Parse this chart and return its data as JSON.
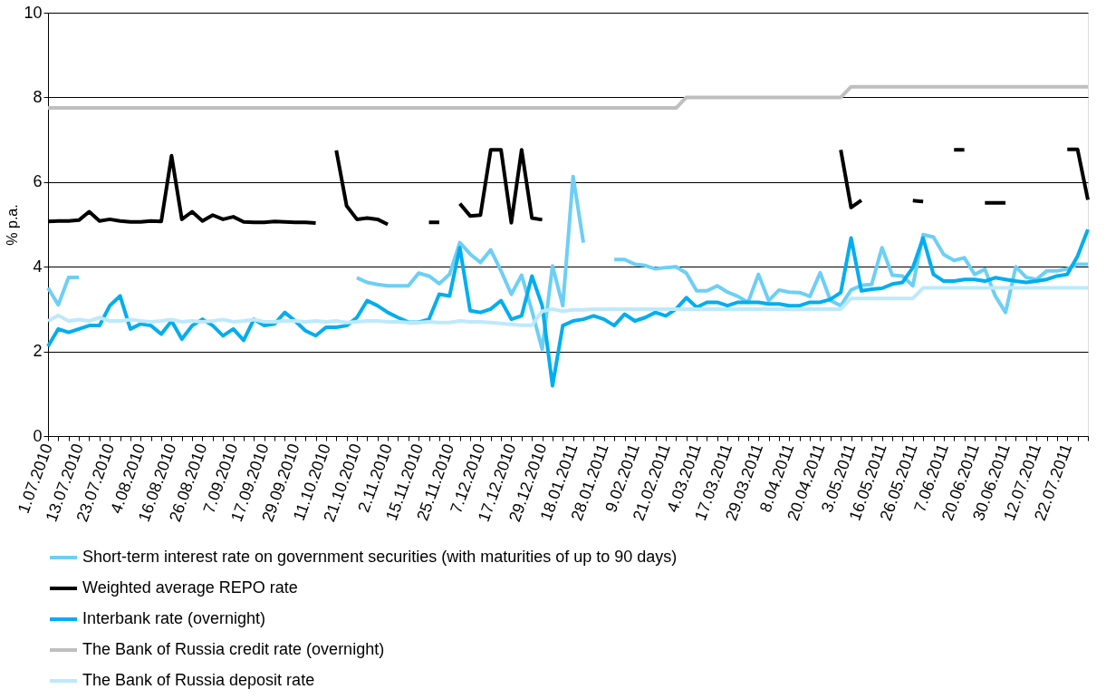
{
  "chart_data": {
    "type": "line",
    "ylabel": "% p.a.",
    "ylim": [
      0,
      10
    ],
    "yticks": [
      0,
      2,
      4,
      6,
      8,
      10
    ],
    "grid": "y",
    "legend": "bottom",
    "line_style": "solid",
    "marker": "none",
    "categories": [
      "1.07.2010",
      null,
      null,
      "13.07.2010",
      null,
      null,
      "23.07.2010",
      null,
      null,
      "4.08.2010",
      null,
      null,
      "16.08.2010",
      null,
      null,
      "26.08.2010",
      null,
      null,
      "7.09.2010",
      null,
      null,
      "17.09.2010",
      null,
      null,
      "29.09.2010",
      null,
      null,
      "11.10.2010",
      null,
      null,
      "21.10.2010",
      null,
      null,
      "2.11.2010",
      null,
      null,
      "15.11.2010",
      null,
      null,
      "25.11.2010",
      null,
      null,
      "7.12.2010",
      null,
      null,
      "17.12.2010",
      null,
      null,
      "29.12.2010",
      null,
      null,
      "18.01.2011",
      null,
      null,
      "28.01.2011",
      null,
      null,
      "9.02.2011",
      null,
      null,
      "21.02.2011",
      null,
      null,
      "4.03.2011",
      null,
      null,
      "17.03.2011",
      null,
      null,
      "29.03.2011",
      null,
      null,
      "8.04.2011",
      null,
      null,
      "20.04.2011",
      null,
      null,
      "3.05.2011",
      null,
      null,
      "16.05.2011",
      null,
      null,
      "26.05.2011",
      null,
      null,
      "7.06.2011",
      null,
      null,
      "20.06.2011",
      null,
      null,
      "30.06.2011",
      null,
      null,
      "12.07.2011",
      null,
      null,
      "22.07.2011",
      null,
      null
    ],
    "series": [
      {
        "name": "Short-term interest rate on government securities (with maturities of up to 90 days)",
        "color": "#6dcff6",
        "values": [
          3.5,
          3.1,
          3.75,
          3.75,
          null,
          null,
          null,
          null,
          null,
          null,
          null,
          null,
          null,
          null,
          null,
          null,
          null,
          null,
          null,
          null,
          null,
          null,
          null,
          null,
          null,
          null,
          null,
          null,
          null,
          null,
          3.74,
          3.63,
          3.58,
          3.55,
          3.55,
          3.55,
          3.85,
          3.78,
          3.6,
          3.82,
          4.57,
          4.3,
          4.1,
          4.4,
          3.9,
          3.35,
          3.8,
          2.96,
          2.05,
          4.02,
          3.08,
          6.13,
          4.57,
          null,
          null,
          4.17,
          4.17,
          4.06,
          4.03,
          3.95,
          3.98,
          4.0,
          3.85,
          3.43,
          3.43,
          3.55,
          3.4,
          3.3,
          3.16,
          3.82,
          3.2,
          3.45,
          3.4,
          3.39,
          3.3,
          3.86,
          3.2,
          3.08,
          3.45,
          3.56,
          3.58,
          4.45,
          3.8,
          3.78,
          3.55,
          4.76,
          4.7,
          4.29,
          4.15,
          4.21,
          3.82,
          3.94,
          3.31,
          2.92,
          4.0,
          3.75,
          3.7,
          3.9,
          3.9,
          3.95,
          4.06,
          4.06
        ]
      },
      {
        "name": "Weighted average REPO rate",
        "color": "#000000",
        "values": [
          5.07,
          5.08,
          5.08,
          5.1,
          5.3,
          5.08,
          5.12,
          5.08,
          5.06,
          5.06,
          5.08,
          5.07,
          6.62,
          5.12,
          5.3,
          5.08,
          5.22,
          5.12,
          5.18,
          5.06,
          5.05,
          5.05,
          5.07,
          5.06,
          5.05,
          5.05,
          5.03,
          null,
          6.75,
          5.44,
          5.12,
          5.15,
          5.12,
          5.0,
          null,
          null,
          null,
          5.05,
          5.05,
          null,
          5.49,
          5.2,
          5.22,
          6.76,
          6.76,
          5.04,
          6.76,
          5.15,
          5.11,
          null,
          null,
          null,
          null,
          null,
          null,
          null,
          null,
          null,
          null,
          null,
          null,
          null,
          null,
          null,
          null,
          null,
          null,
          null,
          null,
          null,
          null,
          null,
          null,
          null,
          null,
          null,
          null,
          6.76,
          5.4,
          5.57,
          null,
          null,
          null,
          null,
          5.56,
          5.54,
          null,
          null,
          6.76,
          6.76,
          null,
          5.51,
          5.51,
          5.51,
          null,
          null,
          null,
          null,
          null,
          6.77,
          6.77,
          5.58
        ]
      },
      {
        "name": "Interbank rate (overnight)",
        "color": "#00aeef",
        "values": [
          2.12,
          2.53,
          2.45,
          2.53,
          2.61,
          2.61,
          3.08,
          3.31,
          2.53,
          2.65,
          2.61,
          2.41,
          2.72,
          2.29,
          2.61,
          2.76,
          2.61,
          2.37,
          2.53,
          2.26,
          2.76,
          2.61,
          2.65,
          2.92,
          2.72,
          2.49,
          2.37,
          2.57,
          2.57,
          2.61,
          2.8,
          3.2,
          3.08,
          2.92,
          2.8,
          2.69,
          2.69,
          2.76,
          3.35,
          3.31,
          4.45,
          2.96,
          2.92,
          3.0,
          3.2,
          2.76,
          2.84,
          3.78,
          3.08,
          1.19,
          2.61,
          2.72,
          2.76,
          2.84,
          2.76,
          2.61,
          2.88,
          2.72,
          2.8,
          2.92,
          2.84,
          3.0,
          3.27,
          3.04,
          3.16,
          3.16,
          3.08,
          3.16,
          3.16,
          3.16,
          3.12,
          3.12,
          3.08,
          3.08,
          3.16,
          3.16,
          3.23,
          3.39,
          4.68,
          3.43,
          3.47,
          3.49,
          3.59,
          3.63,
          3.98,
          4.68,
          3.82,
          3.66,
          3.66,
          3.7,
          3.7,
          3.66,
          3.74,
          3.7,
          3.66,
          3.63,
          3.66,
          3.7,
          3.78,
          3.82,
          4.25,
          4.88
        ]
      },
      {
        "name": "The Bank of Russia credit rate (overnight)",
        "color": "#bfbfbf",
        "values": [
          7.75,
          7.75,
          7.75,
          7.75,
          7.75,
          7.75,
          7.75,
          7.75,
          7.75,
          7.75,
          7.75,
          7.75,
          7.75,
          7.75,
          7.75,
          7.75,
          7.75,
          7.75,
          7.75,
          7.75,
          7.75,
          7.75,
          7.75,
          7.75,
          7.75,
          7.75,
          7.75,
          7.75,
          7.75,
          7.75,
          7.75,
          7.75,
          7.75,
          7.75,
          7.75,
          7.75,
          7.75,
          7.75,
          7.75,
          7.75,
          7.75,
          7.75,
          7.75,
          7.75,
          7.75,
          7.75,
          7.75,
          7.75,
          7.75,
          7.75,
          7.75,
          7.75,
          7.75,
          7.75,
          7.75,
          7.75,
          7.75,
          7.75,
          7.75,
          7.75,
          7.75,
          7.75,
          8.0,
          8.0,
          8.0,
          8.0,
          8.0,
          8.0,
          8.0,
          8.0,
          8.0,
          8.0,
          8.0,
          8.0,
          8.0,
          8.0,
          8.0,
          8.0,
          8.25,
          8.25,
          8.25,
          8.25,
          8.25,
          8.25,
          8.25,
          8.25,
          8.25,
          8.25,
          8.25,
          8.25,
          8.25,
          8.25,
          8.25,
          8.25,
          8.25,
          8.25,
          8.25,
          8.25,
          8.25,
          8.25,
          8.25,
          8.25
        ]
      },
      {
        "name": "The Bank of Russia deposit rate",
        "color": "#bde9fb",
        "values": [
          2.72,
          2.85,
          2.72,
          2.75,
          2.72,
          2.8,
          2.72,
          2.72,
          2.75,
          2.72,
          2.7,
          2.72,
          2.75,
          2.7,
          2.72,
          2.7,
          2.72,
          2.75,
          2.7,
          2.72,
          2.75,
          2.7,
          2.7,
          2.72,
          2.72,
          2.7,
          2.72,
          2.7,
          2.72,
          2.68,
          2.7,
          2.72,
          2.72,
          2.7,
          2.7,
          2.68,
          2.68,
          2.7,
          2.68,
          2.68,
          2.72,
          2.7,
          2.7,
          2.68,
          2.66,
          2.64,
          2.62,
          2.62,
          2.95,
          3.0,
          2.95,
          2.98,
          2.98,
          3.0,
          3.0,
          3.0,
          3.0,
          3.0,
          3.0,
          3.0,
          3.0,
          3.0,
          3.0,
          3.0,
          3.0,
          3.0,
          3.0,
          3.0,
          3.0,
          3.0,
          3.0,
          3.0,
          3.0,
          3.0,
          3.0,
          3.0,
          3.0,
          3.0,
          3.25,
          3.25,
          3.25,
          3.25,
          3.25,
          3.25,
          3.25,
          3.5,
          3.5,
          3.5,
          3.5,
          3.5,
          3.5,
          3.5,
          3.5,
          3.5,
          3.5,
          3.5,
          3.5,
          3.5,
          3.5,
          3.5,
          3.5,
          3.5
        ]
      }
    ]
  }
}
